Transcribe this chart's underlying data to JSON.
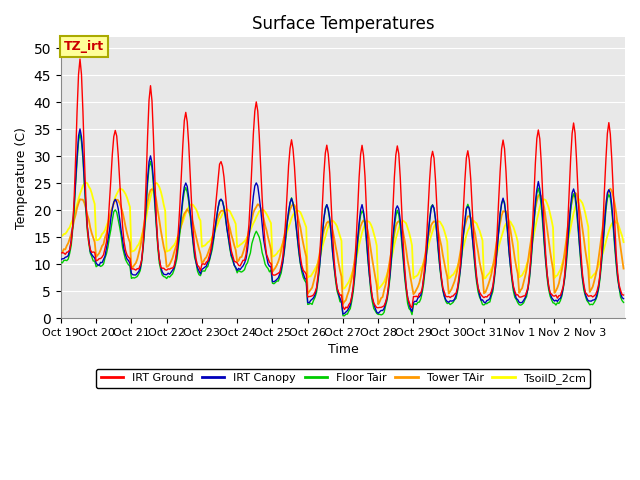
{
  "title": "Surface Temperatures",
  "xlabel": "Time",
  "ylabel": "Temperature (C)",
  "ylim": [
    0,
    52
  ],
  "yticks": [
    0,
    5,
    10,
    15,
    20,
    25,
    30,
    35,
    40,
    45,
    50
  ],
  "xtick_labels": [
    "Oct 19",
    "Oct 20",
    "Oct 21",
    "Oct 22",
    "Oct 23",
    "Oct 24",
    "Oct 25",
    "Oct 26",
    "Oct 27",
    "Oct 28",
    "Oct 29",
    "Oct 30",
    "Oct 31",
    "Nov 1",
    "Nov 2",
    "Nov 3"
  ],
  "legend_labels": [
    "IRT Ground",
    "IRT Canopy",
    "Floor Tair",
    "Tower TAir",
    "TsoilD_2cm"
  ],
  "legend_colors": [
    "#ff0000",
    "#0000bb",
    "#00cc00",
    "#ff9900",
    "#ffff00"
  ],
  "annotation_text": "TZ_irt",
  "annotation_color": "#cc0000",
  "annotation_bg": "#ffff99",
  "annotation_border": "#aaaa00",
  "bg_color": "#e8e8e8",
  "title_fontsize": 12,
  "axis_fontsize": 9,
  "tick_fontsize": 8
}
